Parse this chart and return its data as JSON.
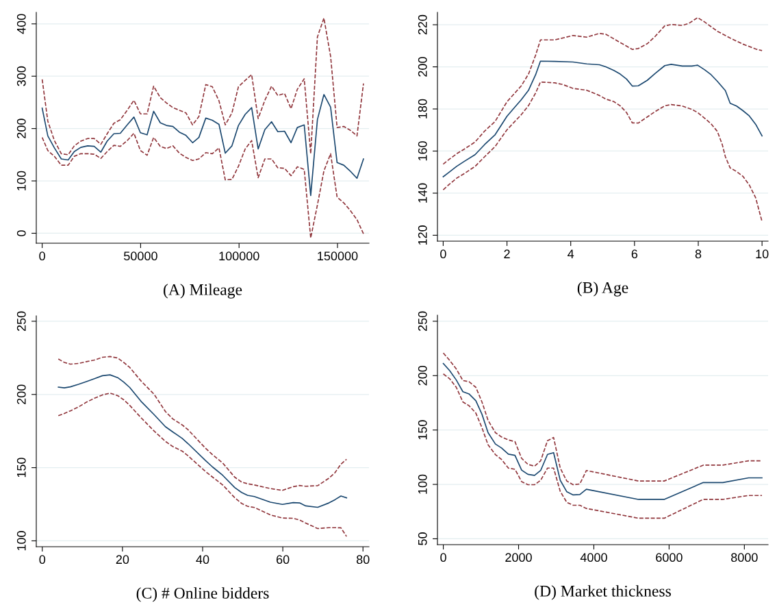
{
  "chart_data": [
    {
      "type": "line",
      "xlabel": "(A) Mileage",
      "grid": "y",
      "xlim": [
        -3000,
        166000
      ],
      "ylim": [
        -19,
        422
      ],
      "xticks": [
        0,
        50000,
        100000,
        150000
      ],
      "yticks": [
        0,
        100,
        200,
        300,
        400
      ],
      "x": [
        0,
        2860,
        6200,
        9700,
        13200,
        16300,
        19600,
        23100,
        26400,
        29800,
        33000,
        36400,
        39700,
        43200,
        46600,
        49900,
        53300,
        56600,
        60000,
        63100,
        66400,
        69700,
        73000,
        76400,
        79600,
        83100,
        86400,
        89800,
        93000,
        96400,
        99700,
        103100,
        106400,
        109700,
        113100,
        116500,
        119700,
        123100,
        126400,
        129600,
        133100,
        136400,
        139800,
        143100,
        146500,
        149800,
        153200,
        156400,
        159900,
        163200
      ],
      "series": [
        {
          "color": "#1a476f",
          "line_style": "solid",
          "values": [
            239,
            186,
            163,
            142,
            140,
            156,
            164,
            167,
            166,
            155,
            176,
            190,
            191,
            207,
            222,
            192,
            188,
            233,
            211,
            206,
            204,
            193,
            187,
            173,
            183,
            220,
            216,
            208,
            153,
            167,
            206,
            227,
            240,
            161,
            198,
            213,
            194,
            195,
            173,
            202,
            207,
            72,
            217,
            265,
            241,
            135,
            130,
            119,
            105,
            142
          ]
        },
        {
          "color": "#90353b",
          "line_style": "dashed",
          "values": [
            294,
            214,
            177,
            152,
            150,
            167,
            176,
            181,
            181,
            170,
            190,
            210,
            217,
            235,
            254,
            228,
            228,
            281,
            259,
            249,
            240,
            235,
            230,
            207,
            223,
            284,
            280,
            253,
            207,
            230,
            280,
            292,
            303,
            219,
            254,
            281,
            263,
            267,
            238,
            275,
            295,
            152,
            375,
            411,
            338,
            202,
            204,
            197,
            186,
            286
          ]
        },
        {
          "color": "#90353b",
          "line_style": "dashed",
          "values": [
            183,
            158,
            147,
            130,
            130,
            147,
            152,
            152,
            151,
            143,
            156,
            168,
            166,
            177,
            191,
            158,
            149,
            183,
            166,
            162,
            167,
            153,
            145,
            139,
            142,
            154,
            152,
            163,
            102,
            103,
            128,
            161,
            177,
            106,
            142,
            142,
            125,
            124,
            110,
            127,
            122,
            -9,
            54,
            119,
            152,
            69,
            58,
            44,
            26,
            -1
          ]
        }
      ]
    },
    {
      "type": "line",
      "xlabel": "(B) Age",
      "grid": "y",
      "xlim": [
        -0.18,
        10.19
      ],
      "ylim": [
        117.2,
        225.9
      ],
      "xticks": [
        0,
        2,
        4,
        6,
        8,
        10
      ],
      "yticks": [
        120,
        140,
        160,
        180,
        200,
        220
      ],
      "series": [
        {
          "color": "#1a476f",
          "line_style": "solid",
          "x": [
            0,
            0.2,
            0.42,
            0.65,
            1.0,
            1.3,
            1.63,
            2.0,
            2.23,
            2.45,
            2.68,
            2.9,
            3.05,
            3.5,
            4.07,
            4.5,
            4.9,
            5.1,
            5.35,
            5.55,
            5.75,
            5.93,
            6.12,
            6.4,
            6.65,
            6.95,
            7.15,
            7.5,
            7.8,
            7.98,
            8.2,
            8.4,
            8.6,
            8.85,
            9.0,
            9.2,
            9.4,
            9.6,
            9.8,
            10.0
          ],
          "values": [
            147.8,
            150.1,
            152.7,
            155.0,
            158.3,
            163.1,
            167.8,
            176.5,
            180.6,
            184.4,
            189.0,
            196.3,
            202.7,
            202.6,
            202.3,
            201.4,
            201.0,
            200.0,
            198.3,
            196.6,
            194.2,
            190.9,
            191.0,
            193.6,
            196.9,
            200.6,
            201.2,
            200.4,
            200.4,
            200.8,
            198.6,
            196.3,
            193.1,
            188.7,
            182.7,
            181.4,
            179.2,
            176.7,
            172.7,
            167.2
          ]
        },
        {
          "color": "#90353b",
          "line_style": "dashed",
          "x": [
            0,
            0.2,
            0.42,
            0.65,
            1.0,
            1.3,
            1.63,
            2.0,
            2.23,
            2.45,
            2.68,
            2.9,
            3.05,
            3.5,
            4.07,
            4.5,
            4.9,
            5.1,
            5.5,
            5.93,
            6.12,
            6.4,
            6.65,
            6.95,
            7.15,
            7.5,
            7.7,
            7.98,
            8.2,
            8.6,
            9.0,
            9.4,
            9.8,
            10.0
          ],
          "values": [
            153.8,
            156.2,
            158.7,
            160.8,
            164.3,
            169.5,
            174.1,
            183.4,
            187.3,
            191.0,
            196.7,
            205.6,
            212.8,
            212.8,
            214.9,
            214.1,
            215.9,
            215.5,
            212.0,
            208.3,
            208.7,
            211.0,
            214.5,
            219.5,
            220.1,
            219.7,
            220.6,
            223.4,
            221.3,
            216.9,
            213.7,
            210.8,
            208.5,
            207.7
          ]
        },
        {
          "color": "#90353b",
          "line_style": "dashed",
          "x": [
            0,
            0.2,
            0.42,
            0.65,
            1.0,
            1.3,
            1.63,
            2.0,
            2.23,
            2.45,
            2.68,
            2.9,
            3.05,
            3.5,
            3.75,
            4.07,
            4.5,
            4.9,
            5.1,
            5.35,
            5.55,
            5.75,
            5.93,
            6.12,
            6.4,
            6.65,
            6.95,
            7.15,
            7.5,
            7.8,
            7.98,
            8.2,
            8.4,
            8.6,
            8.75,
            8.85,
            9.0,
            9.2,
            9.4,
            9.6,
            9.8,
            10.0
          ],
          "values": [
            141.6,
            144.3,
            147.1,
            149.2,
            152.7,
            157.3,
            162.2,
            170.1,
            173.8,
            177.3,
            181.7,
            187.6,
            192.8,
            192.4,
            191.6,
            189.8,
            188.9,
            186.4,
            184.7,
            183.5,
            181.5,
            178.3,
            173.4,
            173.3,
            176.2,
            178.8,
            181.5,
            182.1,
            181.4,
            179.8,
            178.3,
            175.6,
            173.0,
            169.3,
            163.2,
            157.3,
            152.0,
            150.3,
            148.0,
            143.9,
            137.8,
            126.5
          ]
        }
      ]
    },
    {
      "type": "line",
      "xlabel": "(C) # Online bidders",
      "grid": "y",
      "xlim": [
        -1.5,
        81.5
      ],
      "ylim": [
        96,
        253.7
      ],
      "xticks": [
        0,
        20,
        40,
        60,
        80
      ],
      "yticks": [
        100,
        150,
        200,
        250
      ],
      "x": [
        4.0,
        5.5,
        7.0,
        9.0,
        11.0,
        13.0,
        15.0,
        16.9,
        18.8,
        20.3,
        21.8,
        24.6,
        27.9,
        30.7,
        32.5,
        34.9,
        36.4,
        40.7,
        42.5,
        45.0,
        48.0,
        49.7,
        51.2,
        52.9,
        56.9,
        59.9,
        62.6,
        64.2,
        65.7,
        68.7,
        71.5,
        73.0,
        74.5,
        75.9
      ],
      "series": [
        {
          "color": "#1a476f",
          "line_style": "solid",
          "values": [
            205.0,
            204.5,
            205.2,
            206.9,
            208.8,
            210.8,
            212.8,
            213.4,
            211.5,
            208.5,
            204.8,
            195.4,
            186.2,
            178.0,
            174.5,
            170.0,
            166.3,
            154.9,
            150.4,
            144.8,
            136.4,
            133.1,
            131.1,
            130.3,
            126.4,
            124.9,
            126.1,
            125.9,
            123.9,
            122.9,
            125.9,
            128.1,
            130.6,
            129.4
          ]
        },
        {
          "color": "#90353b",
          "line_style": "dashed",
          "values": [
            224.2,
            221.9,
            220.7,
            221.2,
            222.4,
            223.5,
            225.4,
            225.9,
            224.9,
            221.9,
            218.5,
            209.3,
            200.1,
            188.4,
            183.4,
            179.2,
            175.8,
            163.3,
            158.8,
            153.2,
            143.5,
            140.2,
            139.0,
            138.2,
            135.7,
            134.5,
            137.0,
            137.8,
            137.3,
            137.7,
            142.8,
            146.5,
            152.4,
            155.7
          ]
        },
        {
          "color": "#90353b",
          "line_style": "dashed",
          "values": [
            185.5,
            187.0,
            188.8,
            191.4,
            194.7,
            197.4,
            199.7,
            200.9,
            199.2,
            196.4,
            192.6,
            184.2,
            175.0,
            168.0,
            164.5,
            161.3,
            158.0,
            147.4,
            143.5,
            138.2,
            129.5,
            125.6,
            123.6,
            122.8,
            117.7,
            115.6,
            115.4,
            114.2,
            112.2,
            108.4,
            109.0,
            109.0,
            108.9,
            103.0
          ]
        }
      ]
    },
    {
      "type": "line",
      "xlabel": "(D) Market thickness",
      "grid": "y",
      "xlim": [
        -156,
        8631
      ],
      "ylim": [
        44.6,
        255.6
      ],
      "xticks": [
        0,
        2000,
        4000,
        6000,
        8000
      ],
      "yticks": [
        50,
        100,
        150,
        200,
        250
      ],
      "x": [
        0,
        169,
        344,
        520,
        682,
        864,
        1027,
        1189,
        1384,
        1547,
        1729,
        1904,
        2080,
        2249,
        2424,
        2587,
        2769,
        2931,
        3107,
        3282,
        3451,
        3627,
        3802,
        5186,
        5869,
        6908,
        7428,
        8111,
        8468
      ],
      "series": [
        {
          "color": "#1a476f",
          "line_style": "solid",
          "values": [
            211.1,
            204.6,
            196.0,
            185.2,
            183.2,
            176.9,
            164.5,
            147.6,
            137.1,
            133.5,
            127.8,
            126.7,
            113.2,
            109.2,
            108.3,
            112.8,
            127.6,
            129.2,
            103.8,
            93.2,
            90.3,
            90.7,
            95.5,
            86.2,
            86.2,
            101.7,
            101.7,
            106.0,
            106.0
          ]
        },
        {
          "color": "#90353b",
          "line_style": "dashed",
          "values": [
            220.8,
            214.0,
            206.1,
            195.5,
            194.4,
            189.3,
            175.8,
            158.9,
            147.6,
            143.6,
            140.9,
            139.3,
            124.0,
            118.4,
            116.8,
            121.7,
            140.2,
            143.1,
            115.0,
            103.1,
            99.7,
            100.4,
            112.8,
            103.1,
            103.1,
            117.7,
            117.7,
            121.7,
            121.7
          ]
        },
        {
          "color": "#90353b",
          "line_style": "dashed",
          "values": [
            201.6,
            197.1,
            189.3,
            175.8,
            172.4,
            165.6,
            152.1,
            136.4,
            127.4,
            122.9,
            115.0,
            113.9,
            102.6,
            99.7,
            99.7,
            103.8,
            115.0,
            115.0,
            93.6,
            83.5,
            80.8,
            80.8,
            77.9,
            68.9,
            68.9,
            86.2,
            86.2,
            89.8,
            89.8
          ]
        }
      ]
    }
  ]
}
